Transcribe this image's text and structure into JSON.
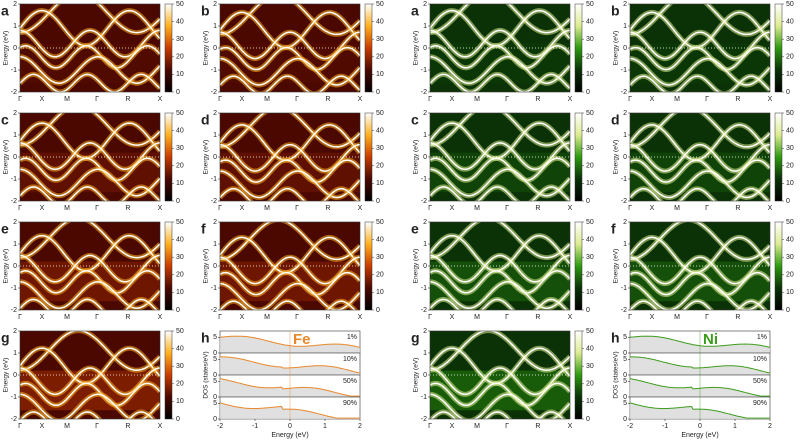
{
  "figures": [
    {
      "element": "Fe",
      "panels": [
        "a",
        "b",
        "c",
        "d",
        "e",
        "f",
        "g"
      ],
      "dos_letter": "h",
      "dos_levels": [
        "1%",
        "10%",
        "50%",
        "90%"
      ],
      "colors": [
        "#000000",
        "#4a0800",
        "#c83c00",
        "#ffb020",
        "#ffffff"
      ],
      "accent": "#e8882a"
    },
    {
      "element": "Ni",
      "panels": [
        "a",
        "b",
        "c",
        "d",
        "e",
        "f",
        "g"
      ],
      "dos_letter": "h",
      "dos_levels": [
        "1%",
        "10%",
        "50%",
        "90%"
      ],
      "colors": [
        "#000000",
        "#0a3206",
        "#2e9a10",
        "#dcec90",
        "#ffffff"
      ],
      "accent": "#3c9c1c"
    }
  ],
  "band_axes": {
    "ylabel": "Energy (eV)",
    "ylim": [
      -2,
      2
    ],
    "yticks": [
      -2,
      -1,
      0,
      1,
      2
    ],
    "kpath": [
      "Γ",
      "X",
      "M",
      "Γ",
      "R",
      "X"
    ]
  },
  "colorbar": {
    "lim": [
      0,
      50
    ],
    "ticks": [
      0,
      10,
      20,
      30,
      40,
      50
    ]
  },
  "dos_axes": {
    "xlabel": "Energy (eV)",
    "ylabel": "DOS (states/eV)",
    "xlim": [
      -2,
      2
    ],
    "xticks": [
      -2,
      -1,
      0,
      1,
      2
    ],
    "ylim": [
      0,
      7
    ],
    "yticks": [
      0,
      5
    ]
  }
}
